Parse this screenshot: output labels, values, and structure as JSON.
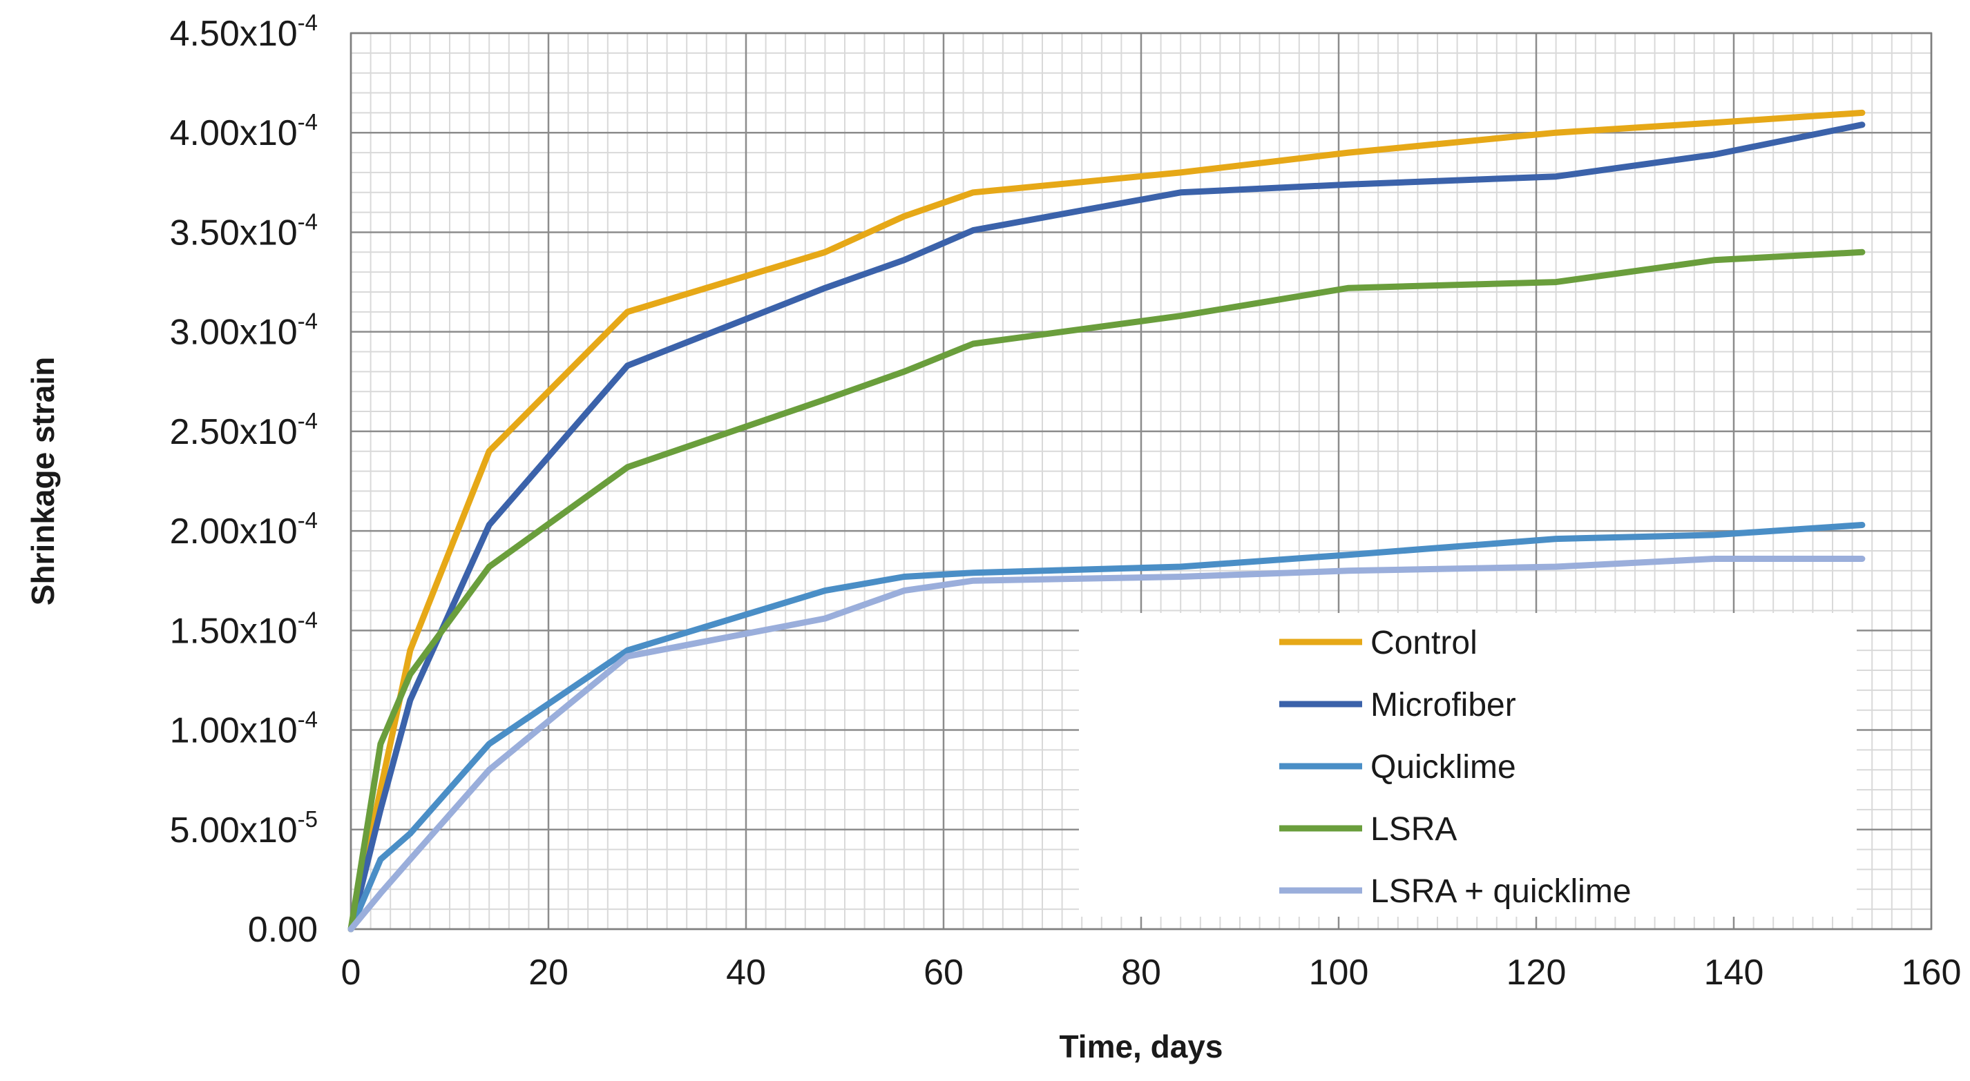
{
  "chart_data": {
    "type": "line",
    "title": "",
    "xlabel": "Time, days",
    "ylabel": "Shrinkage strain",
    "xlim": [
      0,
      160
    ],
    "ylim": [
      0,
      0.00045
    ],
    "x_ticks": [
      0,
      20,
      40,
      60,
      80,
      100,
      120,
      140,
      160
    ],
    "y_ticks": [
      {
        "value": 0,
        "mantissa": "0.00",
        "exponent": ""
      },
      {
        "value": 5e-05,
        "mantissa": "5.00x10",
        "exponent": "-5"
      },
      {
        "value": 0.0001,
        "mantissa": "1.00x10",
        "exponent": "-4"
      },
      {
        "value": 0.00015,
        "mantissa": "1.50x10",
        "exponent": "-4"
      },
      {
        "value": 0.0002,
        "mantissa": "2.00x10",
        "exponent": "-4"
      },
      {
        "value": 0.00025,
        "mantissa": "2.50x10",
        "exponent": "-4"
      },
      {
        "value": 0.0003,
        "mantissa": "3.00x10",
        "exponent": "-4"
      },
      {
        "value": 0.00035,
        "mantissa": "3.50x10",
        "exponent": "-4"
      },
      {
        "value": 0.0004,
        "mantissa": "4.00x10",
        "exponent": "-4"
      },
      {
        "value": 0.00045,
        "mantissa": "4.50x10",
        "exponent": "-4"
      }
    ],
    "grid": true,
    "minor_grid": {
      "x_step": 2,
      "y_step": 1e-05
    },
    "legend_position": "lower-right",
    "series": [
      {
        "name": "Control",
        "color": "#E6A817",
        "x": [
          0,
          3,
          6,
          14,
          28,
          48,
          56,
          63,
          84,
          101,
          122,
          138,
          153
        ],
        "values": [
          0,
          7e-05,
          0.00014,
          0.00024,
          0.00031,
          0.00034,
          0.000358,
          0.00037,
          0.00038,
          0.00039,
          0.0004,
          0.000405,
          0.00041
        ]
      },
      {
        "name": "Microfiber",
        "color": "#3B62AA",
        "x": [
          0,
          3,
          6,
          14,
          28,
          48,
          56,
          63,
          84,
          101,
          122,
          138,
          153
        ],
        "values": [
          0,
          6e-05,
          0.000115,
          0.000203,
          0.000283,
          0.000322,
          0.000336,
          0.000351,
          0.00037,
          0.000374,
          0.000378,
          0.000389,
          0.000404
        ]
      },
      {
        "name": "Quicklime",
        "color": "#4A8EC6",
        "x": [
          0,
          3,
          6,
          14,
          28,
          48,
          56,
          63,
          84,
          101,
          122,
          138,
          153
        ],
        "values": [
          0,
          3.5e-05,
          4.8e-05,
          9.3e-05,
          0.00014,
          0.00017,
          0.000177,
          0.000179,
          0.000182,
          0.000188,
          0.000196,
          0.000198,
          0.000203
        ]
      },
      {
        "name": "LSRA",
        "color": "#6A9E3C",
        "x": [
          0,
          3,
          6,
          14,
          28,
          48,
          56,
          63,
          84,
          101,
          122,
          138,
          153
        ],
        "values": [
          0,
          9.3e-05,
          0.000128,
          0.000182,
          0.000232,
          0.000266,
          0.00028,
          0.000294,
          0.000308,
          0.000322,
          0.000325,
          0.000336,
          0.00034
        ]
      },
      {
        "name": "LSRA + quicklime",
        "color": "#9AAEDB",
        "x": [
          0,
          3,
          6,
          14,
          28,
          48,
          56,
          63,
          84,
          101,
          122,
          138,
          153
        ],
        "values": [
          0,
          1.8e-05,
          3.5e-05,
          8e-05,
          0.000137,
          0.000156,
          0.00017,
          0.000175,
          0.000177,
          0.00018,
          0.000182,
          0.000186,
          0.000186
        ]
      }
    ]
  }
}
